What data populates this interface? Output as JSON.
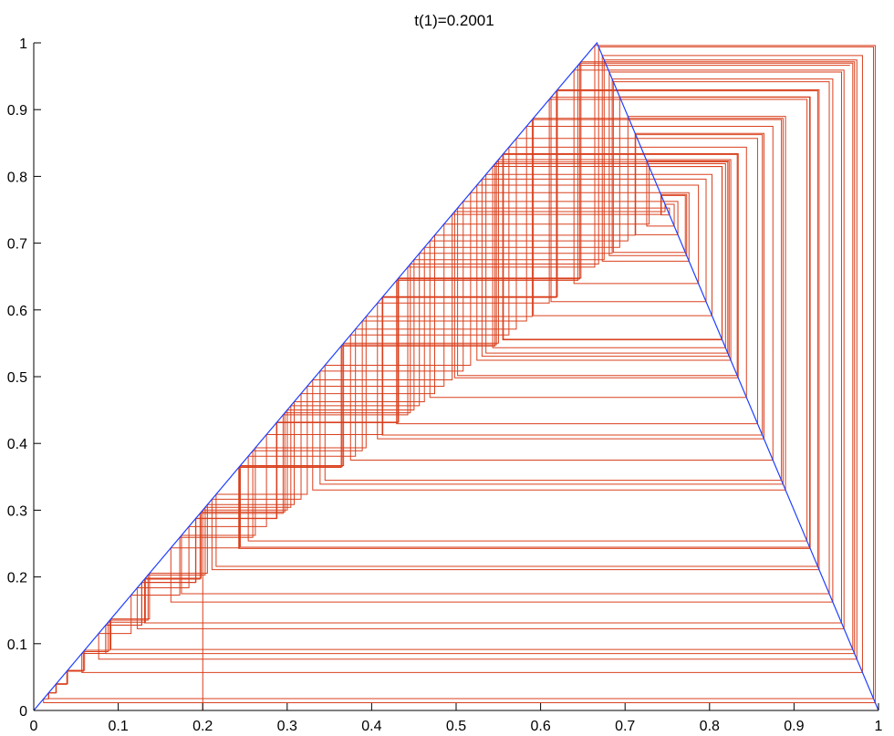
{
  "chart_data": {
    "type": "line",
    "title": "t(1)=0.2001",
    "xlabel": "",
    "ylabel": "",
    "xlim": [
      0,
      1
    ],
    "ylim": [
      0,
      1
    ],
    "x_ticks": [
      0,
      0.1,
      0.2,
      0.3,
      0.4,
      0.5,
      0.6,
      0.7,
      0.8,
      0.9,
      1
    ],
    "y_ticks": [
      0,
      0.1,
      0.2,
      0.3,
      0.4,
      0.5,
      0.6,
      0.7,
      0.8,
      0.9,
      1
    ],
    "x_tick_labels": [
      "0",
      "0.1",
      "0.2",
      "0.3",
      "0.4",
      "0.5",
      "0.6",
      "0.7",
      "0.8",
      "0.9",
      "1"
    ],
    "y_tick_labels": [
      "0",
      "0.1",
      "0.2",
      "0.3",
      "0.4",
      "0.5",
      "0.6",
      "0.7",
      "0.8",
      "0.9",
      "1"
    ],
    "grid": false,
    "legend": "none",
    "colors": {
      "map": "#1f3fff",
      "orbit": "#d9401e",
      "axes": "#000000"
    },
    "series": [
      {
        "x": [
          0,
          0.6667,
          1
        ],
        "y": [
          0,
          1,
          0
        ],
        "color": "#1f3fff"
      },
      {
        "x": [
          0.2001,
          0.2001,
          0.2001,
          0.2001,
          0.2001,
          0.2001,
          0.2001
        ],
        "y": [
          0,
          0.2001,
          0.2001,
          0.2001,
          0.2001,
          0.2001,
          0.2001
        ],
        "color": "#d9401e"
      }
    ],
    "orbit": {
      "x0": 0.2001,
      "peak_x": 0.6667,
      "iterations": 160
    }
  }
}
